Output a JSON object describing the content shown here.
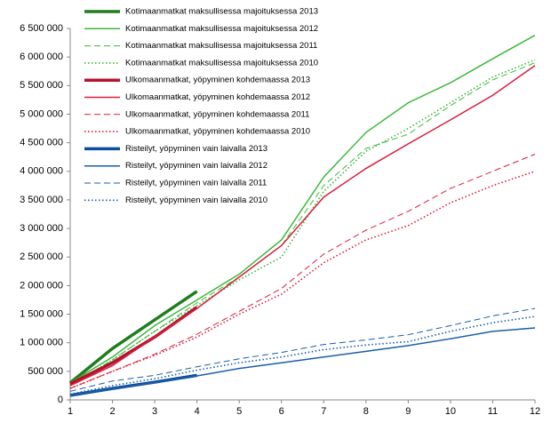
{
  "chart_data": {
    "type": "line",
    "x": [
      1,
      2,
      3,
      4,
      5,
      6,
      7,
      8,
      9,
      10,
      11,
      12
    ],
    "xlim": [
      1,
      12
    ],
    "xticks": [
      1,
      2,
      3,
      4,
      5,
      6,
      7,
      8,
      9,
      10,
      11,
      12
    ],
    "ylim": [
      0,
      6500000
    ],
    "yticks": [
      0,
      {
        "value": 500000,
        "label": "500 000"
      },
      {
        "value": 1000000,
        "label": "1 000 000"
      },
      {
        "value": 1500000,
        "label": "1 500 000"
      },
      {
        "value": 2000000,
        "label": "2 000 000"
      },
      {
        "value": 2500000,
        "label": "2 500 000"
      },
      {
        "value": 3000000,
        "label": "3 000 000"
      },
      {
        "value": 3500000,
        "label": "3 500 000"
      },
      {
        "value": 4000000,
        "label": "4 000 000"
      },
      {
        "value": 4500000,
        "label": "4 500 000"
      },
      {
        "value": 5000000,
        "label": "5 000 000"
      },
      {
        "value": 5500000,
        "label": "5 500 000"
      },
      {
        "value": 6000000,
        "label": "6 000 000"
      },
      {
        "value": 6500000,
        "label": "6 500 000"
      }
    ],
    "grid": false,
    "legend": "top-left",
    "series": [
      {
        "name": "Kotimaanmatkat maksullisessa majoituksessa 2013",
        "color": "#1e7d1e",
        "style": "thick",
        "values": [
          300000,
          900000,
          1400000,
          1900000,
          null,
          null,
          null,
          null,
          null,
          null,
          null,
          null
        ]
      },
      {
        "name": "Kotimaanmatkat maksullisessa majoituksessa 2012",
        "color": "#3cb83c",
        "style": "solid",
        "values": [
          300000,
          750000,
          1300000,
          1750000,
          2200000,
          2800000,
          3900000,
          4680000,
          5200000,
          5550000,
          5970000,
          6380000
        ]
      },
      {
        "name": "Kotimaanmatkat maksullisessa majoituksessa 2011",
        "color": "#3cb83c",
        "style": "dashed",
        "values": [
          250000,
          700000,
          1200000,
          1700000,
          2150000,
          2700000,
          3750000,
          4400000,
          4650000,
          5150000,
          5600000,
          5900000
        ]
      },
      {
        "name": "Kotimaanmatkat maksullisessa majoituksessa 2010",
        "color": "#3cb83c",
        "style": "dotted",
        "values": [
          250000,
          700000,
          1200000,
          1650000,
          2100000,
          2500000,
          3650000,
          4350000,
          4750000,
          5200000,
          5650000,
          5950000
        ]
      },
      {
        "name": "Ulkomaanmatkat, yöpyminen kohdemaassa 2013",
        "color": "#b5122e",
        "style": "thick",
        "values": [
          280000,
          650000,
          1100000,
          1620000,
          null,
          null,
          null,
          null,
          null,
          null,
          null,
          null
        ]
      },
      {
        "name": "Ulkomaanmatkat, yöpyminen kohdemaassa 2012",
        "color": "#d81e3c",
        "style": "solid",
        "values": [
          250000,
          600000,
          1100000,
          1600000,
          2150000,
          2700000,
          3550000,
          4050000,
          4480000,
          4900000,
          5330000,
          5850000
        ]
      },
      {
        "name": "Ulkomaanmatkat, yöpyminen kohdemaassa 2011",
        "color": "#d81e3c",
        "style": "dashed",
        "values": [
          200000,
          500000,
          800000,
          1150000,
          1550000,
          1950000,
          2550000,
          2970000,
          3300000,
          3700000,
          4000000,
          4300000
        ]
      },
      {
        "name": "Ulkomaanmatkat, yöpyminen kohdemaassa 2010",
        "color": "#d81e3c",
        "style": "dotted",
        "values": [
          200000,
          500000,
          780000,
          1100000,
          1500000,
          1850000,
          2400000,
          2800000,
          3050000,
          3450000,
          3750000,
          4000000
        ]
      },
      {
        "name": "Risteilyt, yöpyminen vain laivalla 2013",
        "color": "#0d4f9c",
        "style": "thick",
        "values": [
          80000,
          200000,
          310000,
          430000,
          null,
          null,
          null,
          null,
          null,
          null,
          null,
          null
        ]
      },
      {
        "name": "Risteilyt, yöpyminen vain laivalla 2012",
        "color": "#1a5ea8",
        "style": "solid",
        "values": [
          80000,
          200000,
          300000,
          420000,
          550000,
          650000,
          750000,
          850000,
          950000,
          1070000,
          1200000,
          1260000
        ]
      },
      {
        "name": "Risteilyt, yöpyminen vain laivalla 2011",
        "color": "#1a5ea8",
        "style": "dashed",
        "values": [
          150000,
          330000,
          430000,
          580000,
          720000,
          830000,
          970000,
          1050000,
          1140000,
          1300000,
          1470000,
          1600000
        ]
      },
      {
        "name": "Risteilyt, yöpyminen vain laivalla 2010",
        "color": "#1a5ea8",
        "style": "dotted",
        "values": [
          100000,
          250000,
          370000,
          520000,
          650000,
          750000,
          880000,
          960000,
          1020000,
          1200000,
          1350000,
          1460000
        ]
      }
    ]
  }
}
